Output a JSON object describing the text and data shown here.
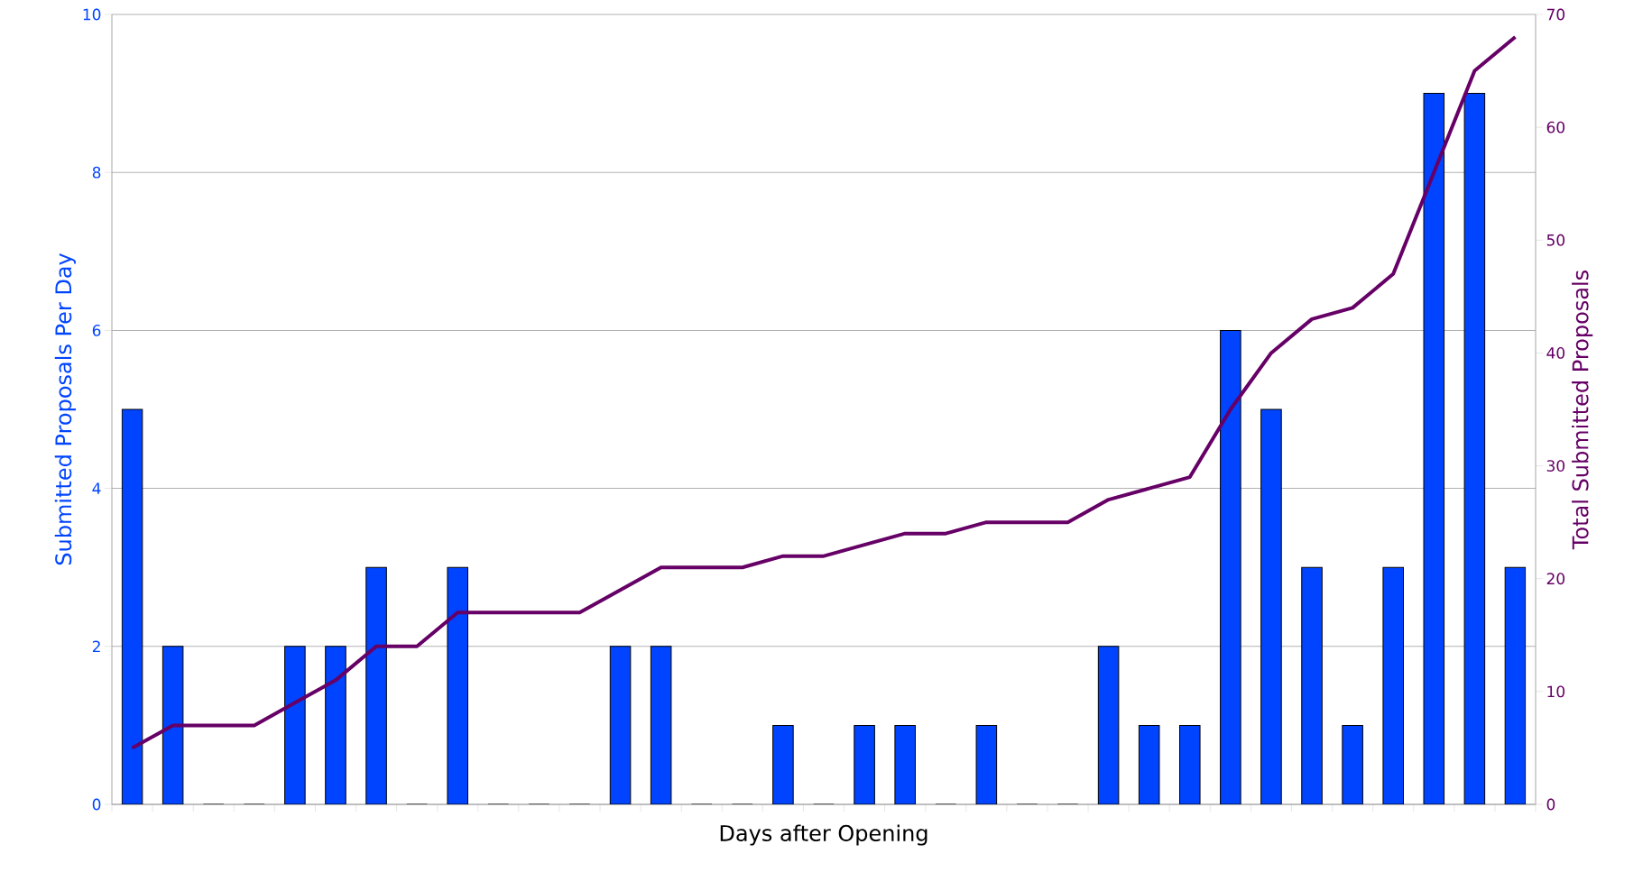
{
  "chart_data": {
    "type": "bar",
    "xlabel": "Days after Opening",
    "ylabel": "Submitted Proposals Per Day",
    "y2label": "Total Submitted Proposals",
    "categories": [
      null,
      null,
      null,
      null,
      null,
      null,
      null,
      null,
      null,
      null,
      null,
      null,
      null,
      null,
      null,
      null,
      null,
      null,
      null,
      null,
      null,
      null,
      null,
      null,
      null,
      null,
      null,
      null,
      null,
      null,
      null,
      null,
      null,
      null,
      null
    ],
    "series": [
      {
        "color": "#0044ff",
        "values": [
          5,
          2,
          0,
          0,
          2,
          2,
          3,
          0,
          3,
          0,
          0,
          0,
          2,
          2,
          0,
          0,
          1,
          0,
          1,
          1,
          0,
          1,
          0,
          0,
          2,
          1,
          1,
          6,
          5,
          3,
          1,
          3,
          9,
          9,
          3
        ]
      },
      {
        "type": "line",
        "axis": "y2",
        "color": "#660066",
        "values": [
          5,
          7,
          7,
          7,
          9,
          11,
          14,
          14,
          17,
          17,
          17,
          17,
          19,
          21,
          21,
          21,
          22,
          22,
          23,
          24,
          24,
          25,
          25,
          25,
          27,
          28,
          29,
          35,
          40,
          43,
          44,
          47,
          56,
          65,
          68
        ]
      }
    ],
    "ylim": [
      0,
      10
    ],
    "yticks": [
      0,
      2,
      4,
      6,
      8,
      10
    ],
    "y2lim": [
      0,
      70
    ],
    "y2ticks": [
      0,
      10,
      20,
      30,
      40,
      50,
      60,
      70
    ],
    "grid": "y",
    "marker": "none",
    "line_style": "solid"
  }
}
